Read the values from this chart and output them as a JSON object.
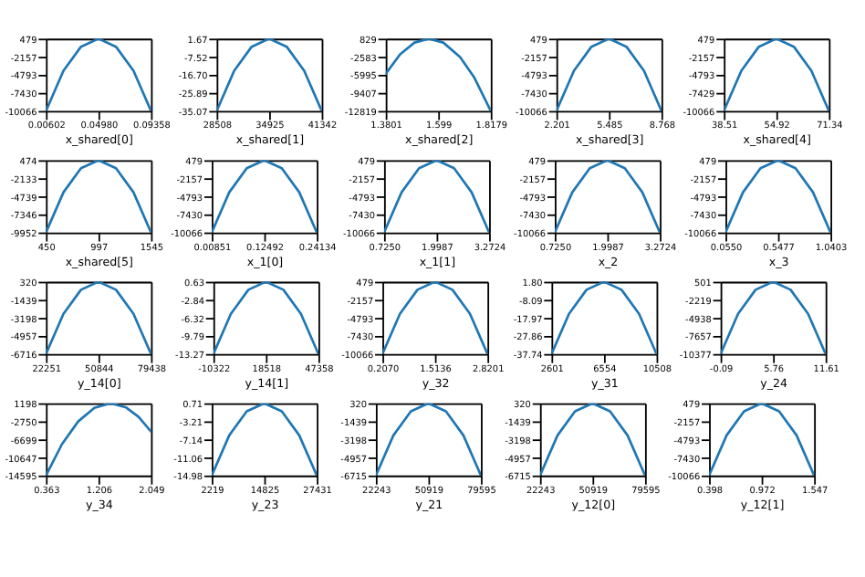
{
  "chart_data": [
    {
      "type": "line",
      "xlabel": "x_shared[0]",
      "grid": false,
      "x": [
        0.00602,
        0.02061,
        0.03521,
        0.0498,
        0.06439,
        0.07899,
        0.09358
      ],
      "series": [
        {
          "color": "#1f77b4",
          "values": [
            -10066,
            -4208,
            -693,
            479,
            -693,
            -4208,
            -10066
          ]
        }
      ],
      "xlim": [
        0.00602,
        0.09358
      ],
      "xticks": [
        0.00602,
        {
          "value": 0.0498,
          "label": "0.04980"
        },
        0.09358
      ],
      "ylim": [
        -10066,
        479
      ],
      "yticks": [
        -10066,
        -7430,
        -4793,
        -2157,
        479
      ]
    },
    {
      "type": "line",
      "xlabel": "x_shared[1]",
      "grid": false,
      "x": [
        28508,
        30647,
        32786,
        34925,
        37064,
        39203,
        41342
      ],
      "series": [
        {
          "color": "#1f77b4",
          "values": [
            -35.07,
            -14.66,
            -2.41,
            1.67,
            -2.41,
            -14.66,
            -35.07
          ]
        }
      ],
      "xlim": [
        28508,
        41342
      ],
      "xticks": [
        28508,
        34925,
        41342
      ],
      "ylim": [
        -35.07,
        1.67
      ],
      "yticks": [
        -35.07,
        -25.89,
        {
          "value": -16.7,
          "label": "-16.70"
        },
        -7.52,
        1.67
      ]
    },
    {
      "type": "line",
      "xlabel": "x_shared[2]",
      "grid": false,
      "x": [
        1.3801,
        1.44,
        1.5,
        1.56,
        1.62,
        1.69,
        1.75,
        1.8179
      ],
      "series": [
        {
          "color": "#1f77b4",
          "values": [
            -5812,
            -2126,
            91,
            829,
            91,
            -2638,
            -6578,
            -12819
          ]
        }
      ],
      "xlim": [
        1.3801,
        1.8179
      ],
      "xticks": [
        1.3801,
        1.599,
        1.8179
      ],
      "ylim": [
        -12819,
        829
      ],
      "yticks": [
        -12819,
        -9407,
        -5995,
        -2583,
        829
      ]
    },
    {
      "type": "line",
      "xlabel": "x_shared[3]",
      "grid": false,
      "x": [
        2.201,
        3.296,
        4.39,
        5.485,
        6.579,
        7.674,
        8.768
      ],
      "series": [
        {
          "color": "#1f77b4",
          "values": [
            -10066,
            -4208,
            -693,
            479,
            -693,
            -4208,
            -10066
          ]
        }
      ],
      "xlim": [
        2.201,
        8.768
      ],
      "xticks": [
        2.201,
        5.485,
        8.768
      ],
      "ylim": [
        -10066,
        479
      ],
      "yticks": [
        -10066,
        -7430,
        -4793,
        -2157,
        479
      ]
    },
    {
      "type": "line",
      "xlabel": "x_shared[4]",
      "grid": false,
      "x": [
        38.51,
        43.98,
        49.45,
        54.92,
        60.4,
        65.87,
        71.34
      ],
      "series": [
        {
          "color": "#1f77b4",
          "values": [
            -10066,
            -4208,
            -693,
            479,
            -693,
            -4208,
            -10066
          ]
        }
      ],
      "xlim": [
        38.51,
        71.34
      ],
      "xticks": [
        38.51,
        54.92,
        71.34
      ],
      "ylim": [
        -10066,
        479
      ],
      "yticks": [
        -10066,
        -7429,
        -4793,
        -2157,
        479
      ]
    },
    {
      "type": "line",
      "xlabel": "x_shared[5]",
      "grid": false,
      "x": [
        450,
        632.5,
        815,
        997.5,
        1180,
        1362.5,
        1545
      ],
      "series": [
        {
          "color": "#1f77b4",
          "values": [
            -9952,
            -4160,
            -684,
            474,
            -684,
            -4160,
            -9952
          ]
        }
      ],
      "xlim": [
        450,
        1545
      ],
      "xticks": [
        450,
        997,
        1545
      ],
      "ylim": [
        -9952,
        474
      ],
      "yticks": [
        -9952,
        -7346,
        -4739,
        -2133,
        474
      ]
    },
    {
      "type": "line",
      "xlabel": "x_1[0]",
      "grid": false,
      "x": [
        0.00851,
        0.04732,
        0.08612,
        0.12492,
        0.16373,
        0.20253,
        0.24134
      ],
      "series": [
        {
          "color": "#1f77b4",
          "values": [
            -10066,
            -4208,
            -693,
            479,
            -693,
            -4208,
            -10066
          ]
        }
      ],
      "xlim": [
        0.00851,
        0.24134
      ],
      "xticks": [
        0.00851,
        0.12492,
        0.24134
      ],
      "ylim": [
        -10066,
        479
      ],
      "yticks": [
        -10066,
        -7430,
        -4793,
        -2157,
        479
      ]
    },
    {
      "type": "line",
      "xlabel": "x_1[1]",
      "grid": false,
      "x": [
        0.725,
        1.1496,
        1.5741,
        1.9987,
        2.4233,
        2.8479,
        3.2724
      ],
      "series": [
        {
          "color": "#1f77b4",
          "values": [
            -10066,
            -4208,
            -693,
            479,
            -693,
            -4208,
            -10066
          ]
        }
      ],
      "xlim": [
        0.725,
        3.2724
      ],
      "xticks": [
        {
          "value": 0.725,
          "label": "0.7250"
        },
        1.9987,
        3.2724
      ],
      "ylim": [
        -10066,
        479
      ],
      "yticks": [
        -10066,
        -7430,
        -4793,
        -2157,
        479
      ]
    },
    {
      "type": "line",
      "xlabel": "x_2",
      "grid": false,
      "x": [
        0.725,
        1.1496,
        1.5741,
        1.9987,
        2.4233,
        2.8479,
        3.2724
      ],
      "series": [
        {
          "color": "#1f77b4",
          "values": [
            -10066,
            -4208,
            -693,
            479,
            -693,
            -4208,
            -10066
          ]
        }
      ],
      "xlim": [
        0.725,
        3.2724
      ],
      "xticks": [
        {
          "value": 0.725,
          "label": "0.7250"
        },
        1.9987,
        3.2724
      ],
      "ylim": [
        -10066,
        479
      ],
      "yticks": [
        -10066,
        -7430,
        -4793,
        -2157,
        479
      ]
    },
    {
      "type": "line",
      "xlabel": "x_3",
      "grid": false,
      "x": [
        0.055,
        0.2192,
        0.3834,
        0.5477,
        0.7119,
        0.8761,
        1.0403
      ],
      "series": [
        {
          "color": "#1f77b4",
          "values": [
            -10066,
            -4208,
            -693,
            479,
            -693,
            -4208,
            -10066
          ]
        }
      ],
      "xlim": [
        0.055,
        1.0403
      ],
      "xticks": [
        {
          "value": 0.055,
          "label": "0.0550"
        },
        0.5477,
        1.0403
      ],
      "ylim": [
        -10066,
        479
      ],
      "yticks": [
        -10066,
        -7430,
        -4793,
        -2157,
        479
      ]
    },
    {
      "type": "line",
      "xlabel": "y_14[0]",
      "grid": false,
      "x": [
        22251,
        31782,
        41313,
        50844,
        60376,
        69907,
        79438
      ],
      "series": [
        {
          "color": "#1f77b4",
          "values": [
            -6716,
            -2807,
            -462,
            320,
            -462,
            -2807,
            -6716
          ]
        }
      ],
      "xlim": [
        22251,
        79438
      ],
      "xticks": [
        22251,
        50844,
        79438
      ],
      "ylim": [
        -6716,
        320
      ],
      "yticks": [
        -6716,
        -4957,
        -3198,
        -1439,
        320
      ]
    },
    {
      "type": "line",
      "xlabel": "y_14[1]",
      "grid": false,
      "x": [
        -10322,
        -709,
        8905,
        18518,
        28131,
        37745,
        47358
      ],
      "series": [
        {
          "color": "#1f77b4",
          "values": [
            -13.27,
            -5.55,
            -0.91,
            0.63,
            -0.91,
            -5.55,
            -13.27
          ]
        }
      ],
      "xlim": [
        -10322,
        47358
      ],
      "xticks": [
        -10322,
        18518,
        47358
      ],
      "ylim": [
        -13.27,
        0.63
      ],
      "yticks": [
        -13.27,
        -9.79,
        -6.32,
        -2.84,
        0.63
      ]
    },
    {
      "type": "line",
      "xlabel": "y_32",
      "grid": false,
      "x": [
        0.207,
        0.6425,
        1.078,
        1.5136,
        1.9491,
        2.3846,
        2.8201
      ],
      "series": [
        {
          "color": "#1f77b4",
          "values": [
            -10066,
            -4208,
            -693,
            479,
            -693,
            -4208,
            -10066
          ]
        }
      ],
      "xlim": [
        0.207,
        2.8201
      ],
      "xticks": [
        {
          "value": 0.207,
          "label": "0.2070"
        },
        1.5136,
        2.8201
      ],
      "ylim": [
        -10066,
        479
      ],
      "yticks": [
        -10066,
        -7430,
        -4793,
        -2157,
        479
      ]
    },
    {
      "type": "line",
      "xlabel": "y_31",
      "grid": false,
      "x": [
        2601,
        3919,
        5237,
        6554,
        7872,
        9190,
        10508
      ],
      "series": [
        {
          "color": "#1f77b4",
          "values": [
            -37.74,
            -15.77,
            -2.59,
            1.8,
            -2.59,
            -15.77,
            -37.74
          ]
        }
      ],
      "xlim": [
        2601,
        10508
      ],
      "xticks": [
        2601,
        6554,
        10508
      ],
      "ylim": [
        -37.74,
        1.8
      ],
      "yticks": [
        -37.74,
        -27.86,
        -17.97,
        -8.09,
        {
          "value": 1.8,
          "label": "1.80"
        }
      ]
    },
    {
      "type": "line",
      "xlabel": "y_24",
      "grid": false,
      "x": [
        -0.09,
        1.86,
        3.81,
        5.76,
        7.71,
        9.66,
        11.61
      ],
      "series": [
        {
          "color": "#1f77b4",
          "values": [
            -10377,
            -4334,
            -708,
            501,
            -708,
            -4334,
            -10377
          ]
        }
      ],
      "xlim": [
        -0.09,
        11.61
      ],
      "xticks": [
        -0.09,
        5.76,
        11.61
      ],
      "ylim": [
        -10377,
        501
      ],
      "yticks": [
        -10377,
        -7657,
        -4938,
        -2219,
        501
      ]
    },
    {
      "type": "line",
      "xlabel": "y_34",
      "grid": false,
      "x": [
        0.363,
        0.62,
        0.88,
        1.14,
        1.4,
        1.65,
        1.85,
        2.049
      ],
      "series": [
        {
          "color": "#1f77b4",
          "values": [
            -14595,
            -7738,
            -2773,
            205,
            1198,
            280,
            -1776,
            -4988
          ]
        }
      ],
      "xlim": [
        0.363,
        2.049
      ],
      "xticks": [
        0.363,
        1.206,
        2.049
      ],
      "ylim": [
        -14595,
        1198
      ],
      "yticks": [
        -14595,
        -10647,
        -6699,
        -2750,
        1198
      ]
    },
    {
      "type": "line",
      "xlabel": "y_23",
      "grid": false,
      "x": [
        2219,
        6421,
        10623,
        14825,
        19027,
        23229,
        27431
      ],
      "series": [
        {
          "color": "#1f77b4",
          "values": [
            -14.98,
            -6.26,
            -1.03,
            0.71,
            -1.03,
            -6.26,
            -14.98
          ]
        }
      ],
      "xlim": [
        2219,
        27431
      ],
      "xticks": [
        2219,
        14825,
        27431
      ],
      "ylim": [
        -14.98,
        0.71
      ],
      "yticks": [
        -14.98,
        -11.06,
        -7.14,
        -3.21,
        0.71
      ]
    },
    {
      "type": "line",
      "xlabel": "y_21",
      "grid": false,
      "x": [
        22243,
        31802,
        41360,
        50919,
        60478,
        70036,
        79595
      ],
      "series": [
        {
          "color": "#1f77b4",
          "values": [
            -6715,
            -2807,
            -462,
            320,
            -462,
            -2807,
            -6715
          ]
        }
      ],
      "xlim": [
        22243,
        79595
      ],
      "xticks": [
        22243,
        50919,
        79595
      ],
      "ylim": [
        -6715,
        320
      ],
      "yticks": [
        -6715,
        -4957,
        -3198,
        -1439,
        320
      ]
    },
    {
      "type": "line",
      "xlabel": "y_12[0]",
      "grid": false,
      "x": [
        22243,
        31802,
        41360,
        50919,
        60478,
        70036,
        79595
      ],
      "series": [
        {
          "color": "#1f77b4",
          "values": [
            -6715,
            -2807,
            -462,
            320,
            -462,
            -2807,
            -6715
          ]
        }
      ],
      "xlim": [
        22243,
        79595
      ],
      "xticks": [
        22243,
        50919,
        79595
      ],
      "ylim": [
        -6715,
        320
      ],
      "yticks": [
        -6715,
        -4957,
        -3198,
        -1439,
        320
      ]
    },
    {
      "type": "line",
      "xlabel": "y_12[1]",
      "grid": false,
      "x": [
        0.398,
        0.5895,
        0.781,
        0.972,
        1.164,
        1.3555,
        1.547
      ],
      "series": [
        {
          "color": "#1f77b4",
          "values": [
            -10066,
            -4208,
            -693,
            479,
            -693,
            -4208,
            -10066
          ]
        }
      ],
      "xlim": [
        0.398,
        1.547
      ],
      "xticks": [
        0.398,
        0.972,
        1.547
      ],
      "ylim": [
        -10066,
        479
      ],
      "yticks": [
        -10066,
        -7430,
        -4793,
        -2157,
        479
      ]
    }
  ]
}
